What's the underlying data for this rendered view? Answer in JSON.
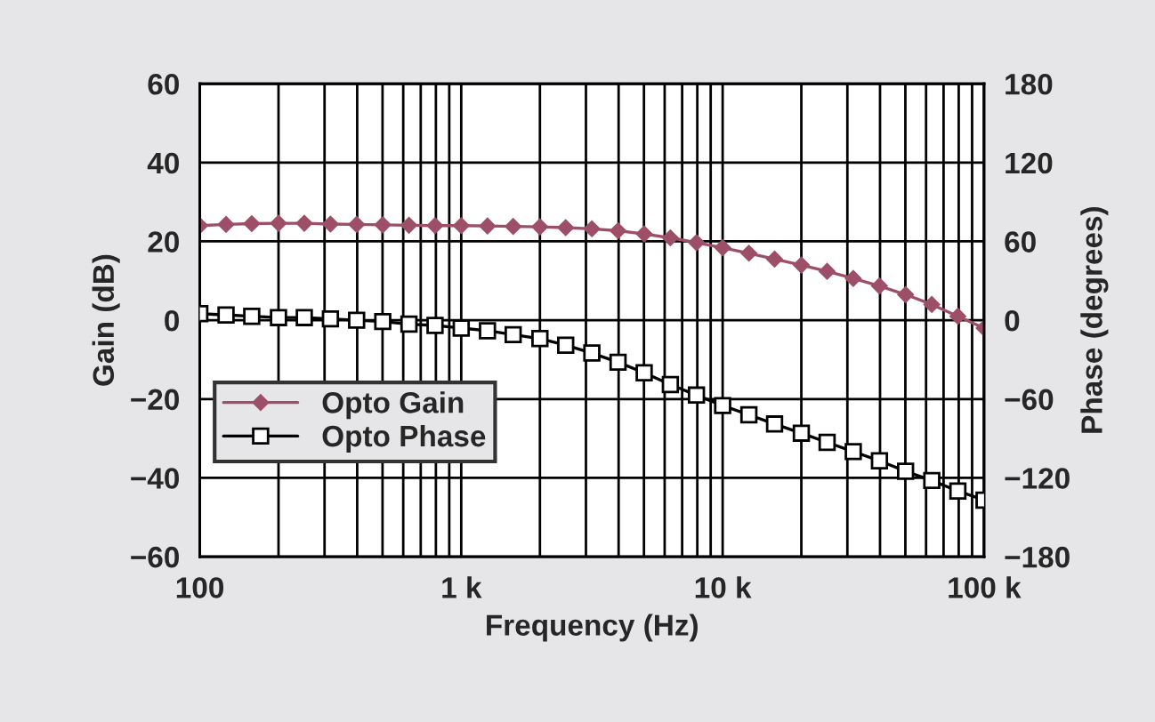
{
  "chart_data": {
    "type": "line",
    "xlabel": "Frequency (Hz)",
    "ylabel": "Gain (dB)",
    "y2label": "Phase (degrees)",
    "log": "x",
    "grid": true,
    "legend": "lower left",
    "line_style": "solid",
    "x": [
      100,
      126,
      158,
      200,
      251,
      316,
      398,
      501,
      631,
      794,
      1000,
      1260,
      1580,
      2000,
      2510,
      3160,
      3980,
      5010,
      6310,
      7940,
      10000,
      12600,
      15800,
      20000,
      25100,
      31600,
      39800,
      50100,
      63100,
      79400,
      100000
    ],
    "xlim": [
      100,
      100000
    ],
    "xticks": [
      {
        "value": 100,
        "label": "100"
      },
      {
        "value": 1000,
        "label": "1 k"
      },
      {
        "value": 10000,
        "label": "10 k"
      },
      {
        "value": 100000,
        "label": "100 k"
      }
    ],
    "ylim": [
      -60,
      60
    ],
    "yticks": [
      {
        "value": -60,
        "label": "−60"
      },
      {
        "value": -40,
        "label": "−40"
      },
      {
        "value": -20,
        "label": "−20"
      },
      0,
      20,
      40,
      60
    ],
    "y2lim": [
      -180,
      180
    ],
    "y2ticks": [
      {
        "value": -180,
        "label": "−180"
      },
      {
        "value": -120,
        "label": "−120"
      },
      {
        "value": -60,
        "label": "−60"
      },
      0,
      60,
      120,
      180
    ],
    "series": [
      {
        "name": "Opto Gain",
        "color": "#9e4f68",
        "marker": "diamond",
        "values": [
          24,
          24.3,
          24.5,
          24.6,
          24.6,
          24.4,
          24.3,
          24.2,
          24.1,
          24,
          24,
          23.9,
          23.8,
          23.7,
          23.5,
          23.2,
          22.7,
          21.9,
          20.9,
          19.7,
          18.4,
          17,
          15.5,
          14,
          12.4,
          10.6,
          8.7,
          6.5,
          4,
          1,
          -2
        ]
      },
      {
        "name": "Opto Phase",
        "color": "#000000",
        "marker": "square",
        "axis": "y2",
        "values": [
          5,
          4,
          3,
          2,
          2,
          1,
          0,
          -1,
          -3,
          -4,
          -6,
          -8,
          -11,
          -14,
          -19,
          -25,
          -32,
          -40,
          -49,
          -57,
          -65,
          -72,
          -79,
          -86,
          -93,
          -100,
          -107,
          -115,
          -122,
          -130,
          -137
        ]
      }
    ]
  }
}
